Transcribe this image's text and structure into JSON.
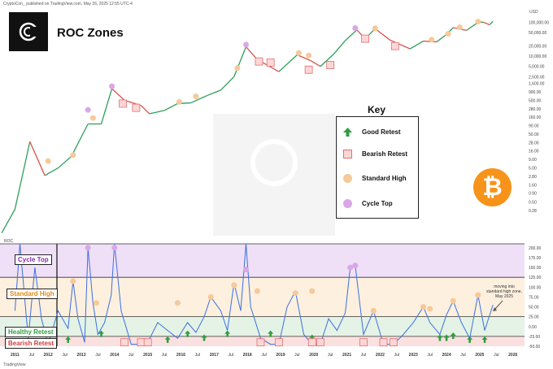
{
  "header_text": "CryptoCon_ published on TradingView.com, May 26, 2025 12:55 UTC-4",
  "currency": "USD",
  "title": "ROC Zones",
  "key": {
    "title": "Key",
    "items": [
      {
        "label": "Good Retest",
        "symbol": "green-up-arrow"
      },
      {
        "label": "Bearish Retest",
        "symbol": "red-square"
      },
      {
        "label": "Standard High",
        "symbol": "orange-circle"
      },
      {
        "label": "Cycle Top",
        "symbol": "purple-circle"
      }
    ]
  },
  "zones": {
    "cycle_top": "Cycle Top",
    "standard_high": "Standard High",
    "healthy_retest": "Healthy Retest",
    "bearish_retest": "Bearish Retest"
  },
  "annotation": "moving into standard high zone, May 2025",
  "roc_label": "ROC",
  "tradingview_mark": "TradingView",
  "colors": {
    "price_up": "#2e9e5b",
    "price_down": "#d9534f",
    "roc_line": "#3b6fe0",
    "cycle_top_zone": "#efe0f7",
    "standard_high_zone": "#fdf0df",
    "healthy_zone": "#e4f3e6",
    "bearish_zone": "#fbe0e0",
    "bitcoin": "#f7931a"
  },
  "chart_data": [
    {
      "type": "line",
      "name": "price",
      "yscale": "log",
      "yticks": [
        "100,000.00",
        "50,000.00",
        "20,000.00",
        "10,000.00",
        "5,000.00",
        "2,500.00",
        "1,600.00",
        "900.00",
        "500.00",
        "280.00",
        "160.00",
        "90.00",
        "50.00",
        "28.00",
        "16.00",
        "9.00",
        "5.00",
        "2.80",
        "1.60",
        "0.90",
        "0.50",
        "0.28"
      ],
      "x": [
        2010.6,
        2011.0,
        2011.45,
        2011.9,
        2012.3,
        2012.7,
        2013.2,
        2013.6,
        2013.92,
        2014.3,
        2014.8,
        2015.05,
        2015.5,
        2015.9,
        2016.3,
        2016.8,
        2017.2,
        2017.6,
        2017.96,
        2018.3,
        2018.95,
        2019.5,
        2019.9,
        2020.2,
        2020.6,
        2020.95,
        2021.3,
        2021.55,
        2021.85,
        2022.3,
        2022.9,
        2023.3,
        2023.7,
        2024.0,
        2024.2,
        2024.6,
        2024.95,
        2025.1,
        2025.3,
        2025.4
      ],
      "y": [
        0.06,
        0.3,
        30,
        3,
        5,
        11,
        100,
        100,
        1100,
        500,
        350,
        200,
        250,
        400,
        420,
        700,
        1000,
        2500,
        19000,
        8000,
        3500,
        11000,
        7500,
        5000,
        11500,
        29000,
        60000,
        33000,
        65000,
        30000,
        16500,
        28000,
        26500,
        44000,
        70000,
        58000,
        100000,
        102000,
        85000,
        108000
      ]
    },
    {
      "type": "line",
      "name": "ROC",
      "yticks": [
        "200.00",
        "175.00",
        "150.00",
        "125.00",
        "100.00",
        "75.00",
        "50.00",
        "25.00",
        "0.00",
        "-25.00",
        "-50.00"
      ],
      "ylim": [
        -50,
        210
      ],
      "xticks": [
        "2011",
        "Jul",
        "2012",
        "Jul",
        "2013",
        "Jul",
        "2014",
        "Jul",
        "2015",
        "Jul",
        "2016",
        "Jul",
        "2017",
        "Jul",
        "2018",
        "Jul",
        "2019",
        "Jul",
        "2020",
        "Jul",
        "2021",
        "Jul",
        "2022",
        "Jul",
        "2023",
        "Jul",
        "2024",
        "Jul",
        "2025",
        "Jul",
        "2026"
      ],
      "x": [
        2011.0,
        2011.15,
        2011.4,
        2011.6,
        2011.8,
        2012.0,
        2012.3,
        2012.6,
        2012.75,
        2012.9,
        2013.1,
        2013.2,
        2013.35,
        2013.5,
        2013.7,
        2013.9,
        2014.0,
        2014.2,
        2014.5,
        2014.8,
        2015.0,
        2015.3,
        2015.6,
        2015.9,
        2016.2,
        2016.45,
        2016.7,
        2016.9,
        2017.2,
        2017.4,
        2017.6,
        2017.8,
        2017.96,
        2018.1,
        2018.4,
        2018.7,
        2018.95,
        2019.2,
        2019.45,
        2019.7,
        2019.95,
        2020.2,
        2020.45,
        2020.7,
        2020.95,
        2021.1,
        2021.25,
        2021.5,
        2021.8,
        2022.1,
        2022.4,
        2022.7,
        2023.0,
        2023.3,
        2023.5,
        2023.8,
        2024.0,
        2024.2,
        2024.45,
        2024.7,
        2024.95,
        2025.15,
        2025.4
      ],
      "y": [
        40,
        210,
        -30,
        150,
        20,
        -45,
        40,
        -5,
        115,
        20,
        -40,
        200,
        60,
        -20,
        10,
        80,
        210,
        40,
        -45,
        -45,
        -40,
        10,
        -10,
        -30,
        10,
        -15,
        25,
        75,
        40,
        -10,
        110,
        40,
        210,
        50,
        -30,
        -45,
        -45,
        50,
        90,
        -20,
        -45,
        -45,
        20,
        -10,
        35,
        150,
        155,
        -20,
        40,
        -45,
        -45,
        -20,
        10,
        50,
        10,
        -20,
        30,
        65,
        10,
        -30,
        80,
        -10,
        55
      ]
    }
  ]
}
